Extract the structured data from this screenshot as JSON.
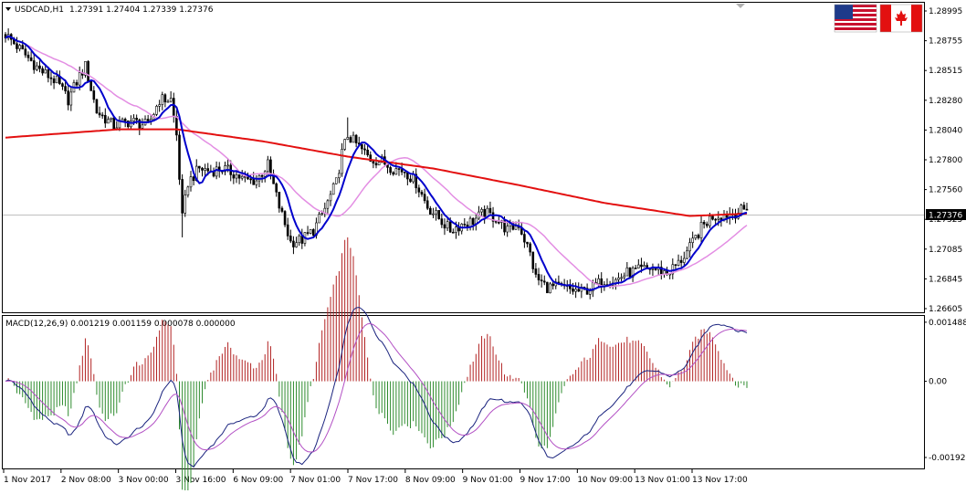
{
  "window": {
    "title": "USDCAD,H1",
    "quote": "1.27391 1.27404 1.27339 1.27376"
  },
  "flags": {
    "left": "us-flag",
    "right": "canada-flag"
  },
  "price_axis": {
    "labels": [
      "1.28995",
      "1.28755",
      "1.28515",
      "1.28280",
      "1.28040",
      "1.27800",
      "1.27560",
      "1.27325",
      "1.27085",
      "1.26845",
      "1.26605"
    ],
    "current_price": "1.27376"
  },
  "macd_panel": {
    "label": "MACD(12,26,9) 0.001219 0.001159 0.000078 0.000000",
    "axis_labels": [
      "0.001488",
      "0.00",
      "-0.00192"
    ]
  },
  "time_axis": {
    "labels": [
      "1 Nov 2017",
      "2 Nov 08:00",
      "3 Nov 00:00",
      "3 Nov 16:00",
      "6 Nov 09:00",
      "7 Nov 01:00",
      "7 Nov 17:00",
      "8 Nov 09:00",
      "9 Nov 01:00",
      "9 Nov 17:00",
      "10 Nov 09:00",
      "13 Nov 01:00",
      "13 Nov 17:00"
    ]
  },
  "colors": {
    "bg": "#ffffff",
    "candles": "#000000",
    "fast_ma": "#0000cc",
    "mid_ma": "#e38ee3",
    "slow_ma": "#e31010",
    "macd_pos_hist": "#b22222",
    "macd_neg_hist": "#2e8b2e",
    "macd_line": "#1a237e",
    "signal_line": "#b24fc4",
    "price_badge": "#000000"
  },
  "chart_data": [
    {
      "type": "candlestick",
      "symbol": "USDCAD",
      "timeframe": "H1",
      "ylim": [
        1.2654,
        1.291
      ],
      "close_anchors": [
        [
          0,
          1.2885
        ],
        [
          6,
          1.287
        ],
        [
          12,
          1.2855
        ],
        [
          18,
          1.2845
        ],
        [
          22,
          1.283
        ],
        [
          26,
          1.285
        ],
        [
          28,
          1.2858
        ],
        [
          32,
          1.282
        ],
        [
          38,
          1.2808
        ],
        [
          44,
          1.2812
        ],
        [
          50,
          1.2808
        ],
        [
          54,
          1.283
        ],
        [
          58,
          1.283
        ],
        [
          60,
          1.28
        ],
        [
          62,
          1.273
        ],
        [
          64,
          1.276
        ],
        [
          68,
          1.2772
        ],
        [
          72,
          1.277
        ],
        [
          76,
          1.2772
        ],
        [
          80,
          1.2768
        ],
        [
          84,
          1.2762
        ],
        [
          88,
          1.2762
        ],
        [
          92,
          1.2775
        ],
        [
          96,
          1.274
        ],
        [
          100,
          1.271
        ],
        [
          104,
          1.2712
        ],
        [
          108,
          1.272
        ],
        [
          112,
          1.2738
        ],
        [
          116,
          1.276
        ],
        [
          118,
          1.2785
        ],
        [
          120,
          1.28
        ],
        [
          124,
          1.279
        ],
        [
          128,
          1.278
        ],
        [
          132,
          1.2778
        ],
        [
          136,
          1.2772
        ],
        [
          140,
          1.277
        ],
        [
          144,
          1.276
        ],
        [
          148,
          1.274
        ],
        [
          152,
          1.273
        ],
        [
          156,
          1.272
        ],
        [
          160,
          1.2725
        ],
        [
          164,
          1.2728
        ],
        [
          168,
          1.2735
        ],
        [
          172,
          1.273
        ],
        [
          176,
          1.272
        ],
        [
          180,
          1.2725
        ],
        [
          184,
          1.27
        ],
        [
          186,
          1.268
        ],
        [
          190,
          1.2672
        ],
        [
          194,
          1.2672
        ],
        [
          198,
          1.267
        ],
        [
          202,
          1.2668
        ],
        [
          206,
          1.2672
        ],
        [
          210,
          1.2678
        ],
        [
          214,
          1.2678
        ],
        [
          218,
          1.2684
        ],
        [
          222,
          1.2686
        ],
        [
          226,
          1.2688
        ],
        [
          230,
          1.2686
        ],
        [
          232,
          1.2684
        ],
        [
          236,
          1.2692
        ],
        [
          240,
          1.2705
        ],
        [
          244,
          1.2722
        ],
        [
          248,
          1.2732
        ],
        [
          252,
          1.2733
        ],
        [
          256,
          1.2735
        ],
        [
          260,
          1.27376
        ]
      ],
      "bar_count": 261,
      "series": [
        {
          "name": "fast MA"
        },
        {
          "name": "medium MA"
        },
        {
          "name": "slow MA"
        }
      ],
      "current_price": 1.27376,
      "price_gridline": false,
      "grid": false
    },
    {
      "type": "macd",
      "params": "12,26,9",
      "values": {
        "macd": 0.001219,
        "signal": 0.001159,
        "histogram": 7.8e-05
      },
      "ylim": [
        -0.00215,
        0.0016
      ],
      "axis_ticks": [
        0.001488,
        0.0,
        -0.00192
      ],
      "series": [
        {
          "name": "macd histogram"
        },
        {
          "name": "macd line"
        },
        {
          "name": "signal line"
        }
      ]
    }
  ]
}
